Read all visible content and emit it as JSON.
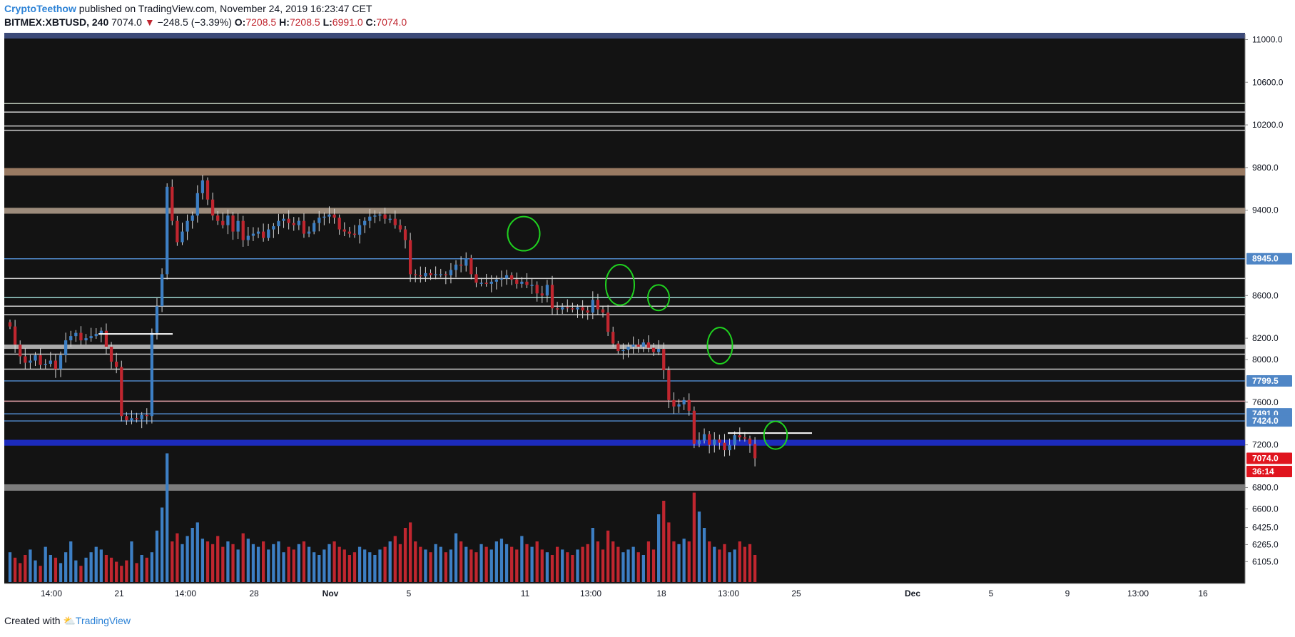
{
  "header": {
    "author": "CryptoTeethow",
    "published": "published on TradingView.com, November 24, 2019 16:23:47 CET",
    "symbol": "BITMEX:XBTUSD, 240",
    "last": "7074.0",
    "change": "−248.5 (−3.39%)",
    "o_label": "O:",
    "o": "7208.5",
    "h_label": "H:",
    "h": "7208.5",
    "l_label": "L:",
    "l": "6991.0",
    "c_label": "C:",
    "c": "7074.0"
  },
  "footer": {
    "created": "Created with",
    "brand": "TradingView"
  },
  "colors": {
    "background": "#131313",
    "up": "#3d7fc4",
    "down": "#c0262f",
    "wick": "#d8d8d8",
    "annotation": "#1fd11f",
    "frame": "#3c4a78"
  },
  "chart_data": {
    "type": "candlestick",
    "symbol": "BITMEX:XBTUSD",
    "interval": "240",
    "ylim": [
      5900,
      11050
    ],
    "y_ticks": [
      "11000.0",
      "10600.0",
      "10200.0",
      "9800.0",
      "9400.0",
      "8600.0",
      "8200.0",
      "8000.0",
      "7600.0",
      "7200.0",
      "6800.0",
      "6600.0",
      "6425.0",
      "6265.0",
      "6105.0"
    ],
    "x_ticks": [
      "14:00",
      "21",
      "14:00",
      "28",
      "Nov",
      "5",
      "11",
      "13:00",
      "18",
      "13:00",
      "25",
      "Dec",
      "5",
      "9",
      "13:00",
      "16"
    ],
    "price_labels": [
      {
        "value": "8945.0",
        "price": 8945,
        "color": "#4f86c6"
      },
      {
        "value": "7799.5",
        "price": 7799.5,
        "color": "#4f86c6"
      },
      {
        "value": "7491.0",
        "price": 7491,
        "color": "#4f86c6"
      },
      {
        "value": "7424.0",
        "price": 7424,
        "color": "#4f86c6"
      },
      {
        "value": "7074.0",
        "price": 7074,
        "color": "#e0141e"
      },
      {
        "value": "36:14",
        "price": 6950,
        "color": "#e0141e"
      }
    ],
    "horizontal_levels": [
      {
        "price": 10400,
        "color": "#c8d4c4",
        "band": false
      },
      {
        "price": 10320,
        "color": "#cfcfcf",
        "band": false
      },
      {
        "price": 10190,
        "color": "#cfcfcf",
        "band": false
      },
      {
        "price": 10150,
        "color": "#cfcfcf",
        "band": false
      },
      {
        "price": 9760,
        "color": "#a8866b",
        "band": true,
        "height": 70
      },
      {
        "price": 9395,
        "color": "#ad9a88",
        "band": true,
        "height": 55
      },
      {
        "price": 8945,
        "color": "#4f86c6",
        "band": false
      },
      {
        "price": 8760,
        "color": "#cfcfcf",
        "band": false
      },
      {
        "price": 8580,
        "color": "#9ed6d0",
        "band": false
      },
      {
        "price": 8500,
        "color": "#cfcfcf",
        "band": false
      },
      {
        "price": 8420,
        "color": "#cfcfcf",
        "band": false
      },
      {
        "price": 8120,
        "color": "#bdbdbd",
        "band": true,
        "height": 40
      },
      {
        "price": 8050,
        "color": "#cfcfcf",
        "band": false
      },
      {
        "price": 7910,
        "color": "#cfcfcf",
        "band": false
      },
      {
        "price": 7799.5,
        "color": "#4f86c6",
        "band": false
      },
      {
        "price": 7610,
        "color": "#e8a4ab",
        "band": false
      },
      {
        "price": 7491,
        "color": "#4f86c6",
        "band": false
      },
      {
        "price": 7424,
        "color": "#4f86c6",
        "band": false
      },
      {
        "price": 7220,
        "color": "#1e2fd0",
        "band": true,
        "height": 55
      },
      {
        "price": 6800,
        "color": "#8a8a8a",
        "band": true,
        "height": 60
      }
    ],
    "short_lines": [
      {
        "x0": 0.1,
        "x1": 0.28,
        "price": 8240
      },
      {
        "x0": 0.72,
        "x1": 0.92,
        "price": 7310
      }
    ],
    "circles": [
      {
        "x": 0.557,
        "price": 9180,
        "rx": 0.018,
        "ry": 160
      },
      {
        "x": 0.645,
        "price": 8700,
        "rx": 0.016,
        "ry": 190
      },
      {
        "x": 0.71,
        "price": 8580,
        "rx": 0.012,
        "ry": 120
      },
      {
        "x": 0.785,
        "price": 8130,
        "rx": 0.014,
        "ry": 170
      },
      {
        "x": 0.845,
        "price": 7290,
        "rx": 0.013,
        "ry": 130
      }
    ],
    "candles_close": [
      8310,
      8140,
      8030,
      7970,
      7990,
      8040,
      7950,
      7960,
      7990,
      7910,
      8040,
      8180,
      8220,
      8250,
      8180,
      8200,
      8220,
      8240,
      8270,
      8120,
      7980,
      7930,
      7470,
      7430,
      7450,
      7440,
      7480,
      7470,
      8250,
      8500,
      8800,
      9620,
      9300,
      9100,
      9200,
      9300,
      9350,
      9560,
      9680,
      9500,
      9350,
      9300,
      9260,
      9350,
      9200,
      9300,
      9120,
      9160,
      9180,
      9200,
      9140,
      9220,
      9250,
      9300,
      9320,
      9280,
      9260,
      9300,
      9180,
      9200,
      9280,
      9330,
      9340,
      9360,
      9330,
      9220,
      9200,
      9180,
      9170,
      9260,
      9300,
      9340,
      9350,
      9360,
      9320,
      9320,
      9260,
      9220,
      9120,
      8800,
      8790,
      8780,
      8810,
      8790,
      8800,
      8800,
      8790,
      8840,
      8890,
      8880,
      8950,
      8800,
      8720,
      8720,
      8710,
      8730,
      8750,
      8760,
      8790,
      8750,
      8710,
      8730,
      8700,
      8700,
      8620,
      8600,
      8700,
      8480,
      8470,
      8490,
      8480,
      8470,
      8490,
      8460,
      8440,
      8560,
      8470,
      8440,
      8260,
      8150,
      8080,
      8090,
      8120,
      8140,
      8120,
      8160,
      8110,
      8070,
      8100,
      7900,
      7620,
      7560,
      7580,
      7620,
      7520,
      7210,
      7240,
      7300,
      7200,
      7250,
      7220,
      7150,
      7200,
      7290,
      7270,
      7260,
      7208,
      7074
    ],
    "volumes": [
      0.22,
      0.18,
      0.14,
      0.2,
      0.24,
      0.16,
      0.12,
      0.26,
      0.2,
      0.18,
      0.14,
      0.22,
      0.3,
      0.16,
      0.12,
      0.18,
      0.22,
      0.26,
      0.24,
      0.2,
      0.18,
      0.15,
      0.12,
      0.16,
      0.3,
      0.14,
      0.2,
      0.18,
      0.22,
      0.38,
      0.55,
      0.95,
      0.3,
      0.36,
      0.28,
      0.34,
      0.4,
      0.44,
      0.32,
      0.3,
      0.28,
      0.34,
      0.26,
      0.3,
      0.28,
      0.24,
      0.36,
      0.32,
      0.28,
      0.26,
      0.3,
      0.24,
      0.28,
      0.3,
      0.22,
      0.26,
      0.24,
      0.28,
      0.3,
      0.26,
      0.22,
      0.2,
      0.24,
      0.28,
      0.3,
      0.26,
      0.24,
      0.2,
      0.22,
      0.26,
      0.24,
      0.22,
      0.2,
      0.24,
      0.26,
      0.3,
      0.34,
      0.28,
      0.4,
      0.44,
      0.3,
      0.26,
      0.24,
      0.22,
      0.28,
      0.26,
      0.22,
      0.24,
      0.36,
      0.3,
      0.26,
      0.24,
      0.22,
      0.28,
      0.26,
      0.24,
      0.3,
      0.32,
      0.28,
      0.26,
      0.24,
      0.34,
      0.28,
      0.26,
      0.3,
      0.24,
      0.22,
      0.2,
      0.26,
      0.24,
      0.22,
      0.2,
      0.24,
      0.26,
      0.28,
      0.4,
      0.3,
      0.24,
      0.38,
      0.3,
      0.26,
      0.22,
      0.24,
      0.26,
      0.22,
      0.2,
      0.3,
      0.24,
      0.5,
      0.6,
      0.44,
      0.3,
      0.28,
      0.32,
      0.3,
      0.66,
      0.52,
      0.4,
      0.3,
      0.26,
      0.24,
      0.28,
      0.22,
      0.24,
      0.3,
      0.26,
      0.28,
      0.2
    ]
  }
}
